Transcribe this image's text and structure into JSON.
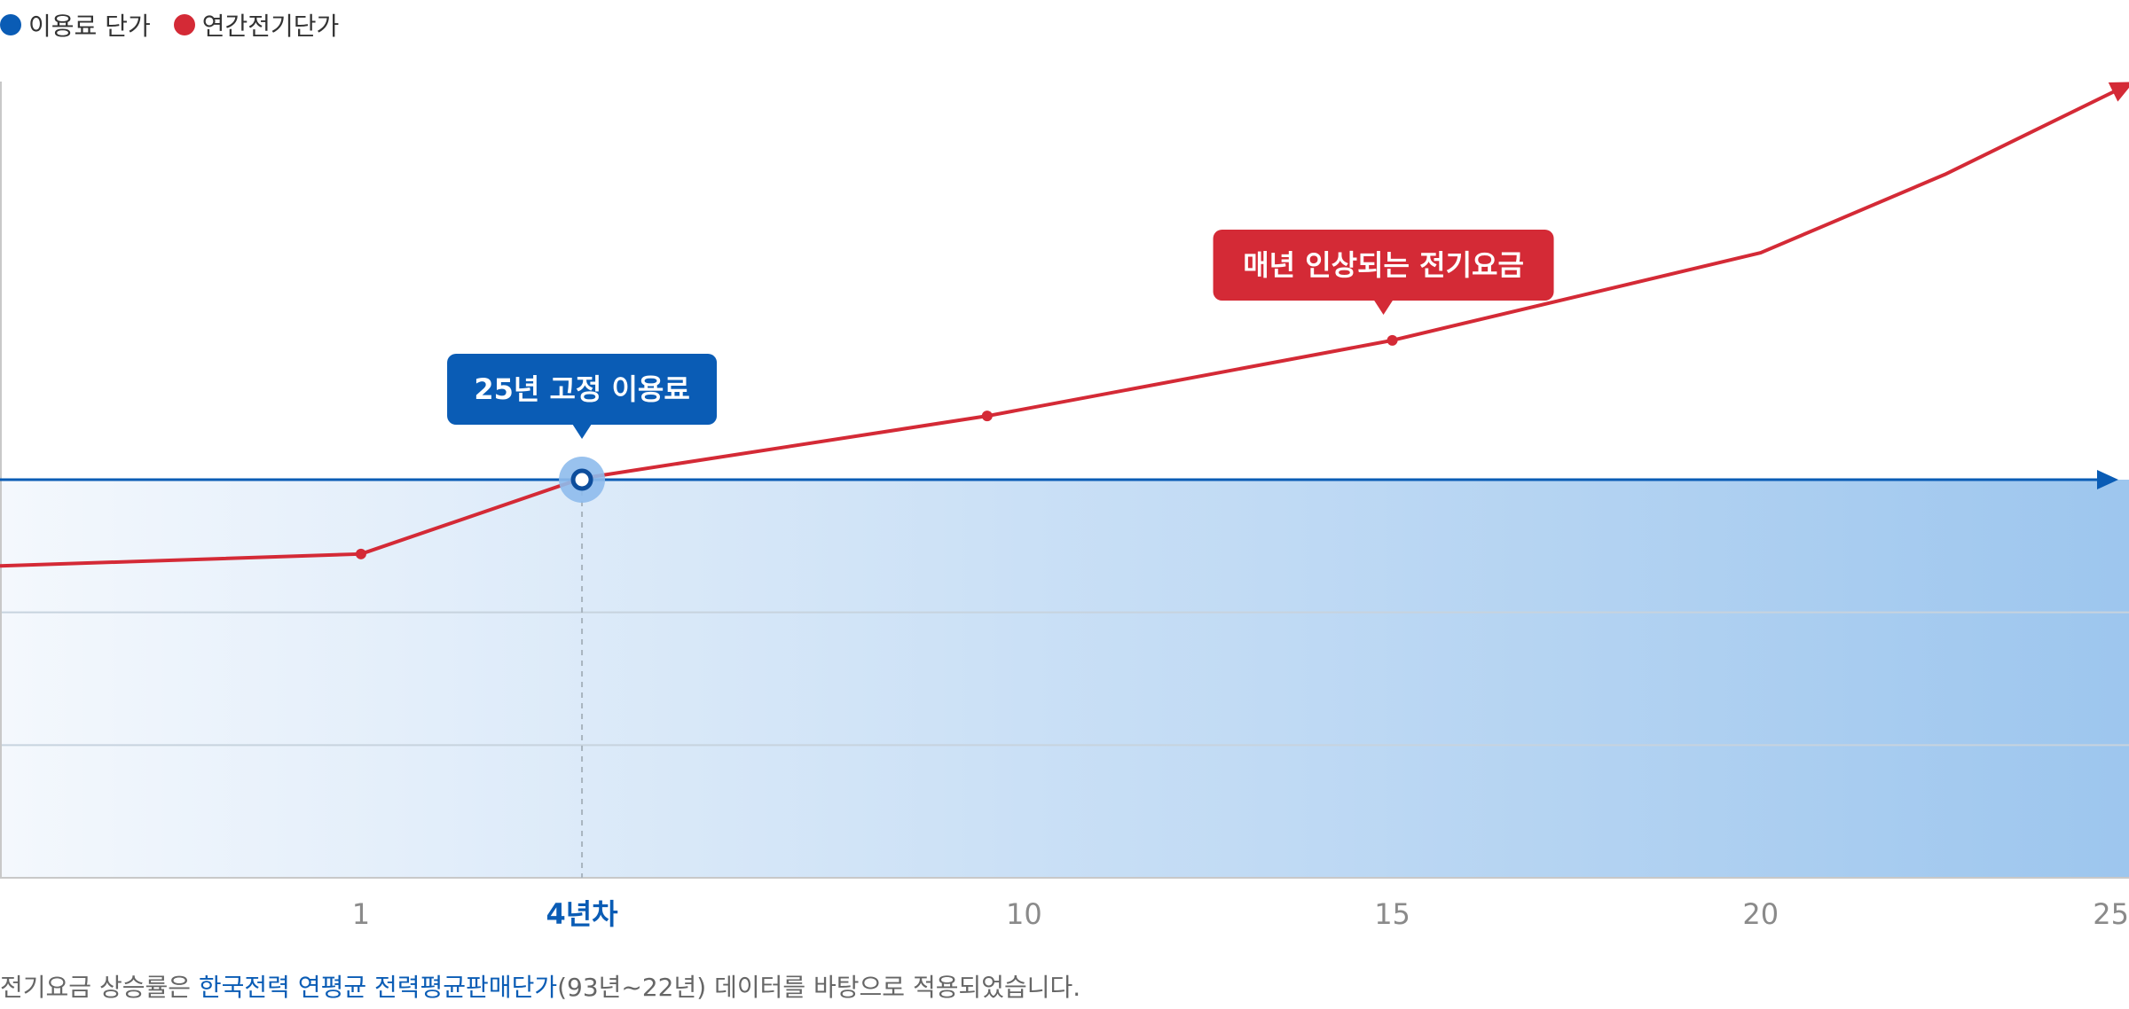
{
  "legend": [
    {
      "label": "이용료 단가",
      "color": "#0a5cb5"
    },
    {
      "label": "연간전기단가",
      "color": "#d42a36"
    }
  ],
  "callouts": {
    "fixed": "25년 고정 이용료",
    "rising": "매년 인상되는 전기요금"
  },
  "footnote": {
    "prefix": "전기요금 상승률은 ",
    "source": "한국전력 연평균 전력평균판매단가",
    "suffix": "(93년~22년) 데이터를 바탕으로 적용되었습니다."
  },
  "colors": {
    "fixed": "#0a5cb5",
    "electric": "#d42a36",
    "fill_light": "#f4f8fd",
    "fill_dark": "#9dc6ee"
  },
  "chart_data": {
    "type": "line",
    "x_ticks": [
      {
        "value": 1,
        "label": "1"
      },
      {
        "value": 4,
        "label": "4년차",
        "highlight": true
      },
      {
        "value": 10,
        "label": "10"
      },
      {
        "value": 15,
        "label": "15"
      },
      {
        "value": 20,
        "label": "20"
      },
      {
        "value": 25,
        "label": "25"
      }
    ],
    "xlim": [
      -3.9,
      25
    ],
    "ylim": [
      0,
      6
    ],
    "grid": true,
    "legend_position": "top-left",
    "series": [
      {
        "name": "이용료 단가",
        "x": [
          -3.9,
          25
        ],
        "y": [
          3,
          3
        ]
      },
      {
        "name": "연간전기단가",
        "x": [
          -3.9,
          1,
          4,
          9.5,
          15,
          20,
          22.5,
          25
        ],
        "y": [
          2.35,
          2.44,
          3.01,
          3.48,
          4.05,
          4.71,
          5.3,
          5.98
        ],
        "markers": [
          1,
          4,
          9.5,
          15
        ]
      }
    ],
    "crossover_x": 4
  }
}
